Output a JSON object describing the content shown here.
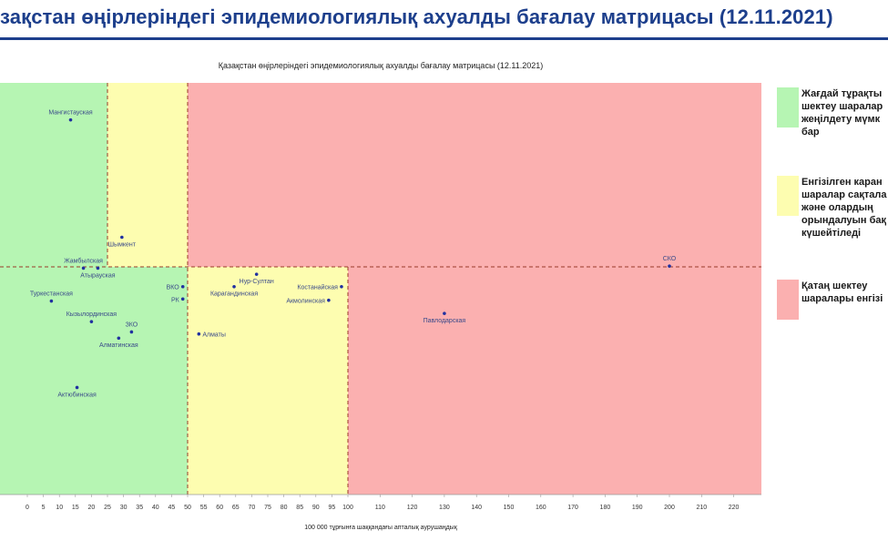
{
  "page": {
    "title": "зақстан өңірлеріндегі эпидемиологиялық ахуалды бағалау матрицасы  (12.11.2021)"
  },
  "legend": [
    {
      "color": "#b6f5b3",
      "label": "Жағдай тұрақты\nшектеу шаралар\nжеңілдету мүмк\nбар"
    },
    {
      "color": "#fdfdb0",
      "label": "Енгізілген каран\nшаралар сақтала\nжәне олардың\nорындалуын бақ\nкүшейтіледі"
    },
    {
      "color": "#fbb0b0",
      "label": "Қатаң шектеу\nшаралары енгізі"
    }
  ],
  "chart_data": {
    "type": "scatter",
    "title": "Қазақстан өңірлеріндегі эпидемиологиялық ахуалды бағалау матрицасы  (12.11.2021)",
    "xlabel": "100 000 тұрғынға шаққандағы апталық аурушаңдық",
    "ylabel": "",
    "xlim": [
      0,
      230
    ],
    "x_ticks": [
      0,
      5,
      10,
      15,
      20,
      25,
      30,
      35,
      40,
      45,
      50,
      55,
      60,
      65,
      70,
      75,
      80,
      85,
      90,
      95,
      100,
      110,
      120,
      130,
      140,
      150,
      160,
      170,
      180,
      190,
      200,
      210,
      220
    ],
    "zones": [
      {
        "name": "green",
        "x_range": [
          0,
          50
        ],
        "color": "#b6f5b3"
      },
      {
        "name": "yellow",
        "x_range": [
          50,
          100
        ],
        "color": "#fdfdb0"
      },
      {
        "name": "red",
        "x_range": [
          100,
          230
        ],
        "color": "#fbb0b0"
      }
    ],
    "upper_band": {
      "green_to": 25,
      "yellow_to": 50
    },
    "points": [
      {
        "label": "Мангистауская",
        "x": 13.5,
        "y": 0.91,
        "label_side": "above"
      },
      {
        "label": "Шымкент",
        "x": 29.5,
        "y": 0.625,
        "label_side": "below"
      },
      {
        "label": "Жамбылская",
        "x": 17.5,
        "y": 0.55,
        "label_side": "above"
      },
      {
        "label": "Атырауская",
        "x": 22,
        "y": 0.55,
        "label_side": "below"
      },
      {
        "label": "Туркестанская",
        "x": 7.5,
        "y": 0.47,
        "label_side": "above"
      },
      {
        "label": "ВКО",
        "x": 48.5,
        "y": 0.505,
        "label_side": "left"
      },
      {
        "label": "РК",
        "x": 48.5,
        "y": 0.475,
        "label_side": "left"
      },
      {
        "label": "Кызылординская",
        "x": 20,
        "y": 0.42,
        "label_side": "above"
      },
      {
        "label": "ЗКО",
        "x": 32.5,
        "y": 0.395,
        "label_side": "above"
      },
      {
        "label": "Алматинская",
        "x": 28.5,
        "y": 0.38,
        "label_side": "below"
      },
      {
        "label": "Актюбинская",
        "x": 15.5,
        "y": 0.26,
        "label_side": "below"
      },
      {
        "label": "Нур-Султан",
        "x": 71.5,
        "y": 0.535,
        "label_side": "below"
      },
      {
        "label": "Карагандинская",
        "x": 64.5,
        "y": 0.505,
        "label_side": "below"
      },
      {
        "label": "Костанайская",
        "x": 98,
        "y": 0.505,
        "label_side": "left"
      },
      {
        "label": "Акмолинская",
        "x": 94,
        "y": 0.472,
        "label_side": "left"
      },
      {
        "label": "Алматы",
        "x": 53.5,
        "y": 0.39,
        "label_side": "right"
      },
      {
        "label": "Павлодарская",
        "x": 130,
        "y": 0.44,
        "label_side": "below"
      },
      {
        "label": "СКО",
        "x": 200,
        "y": 0.555,
        "label_side": "above"
      }
    ]
  }
}
